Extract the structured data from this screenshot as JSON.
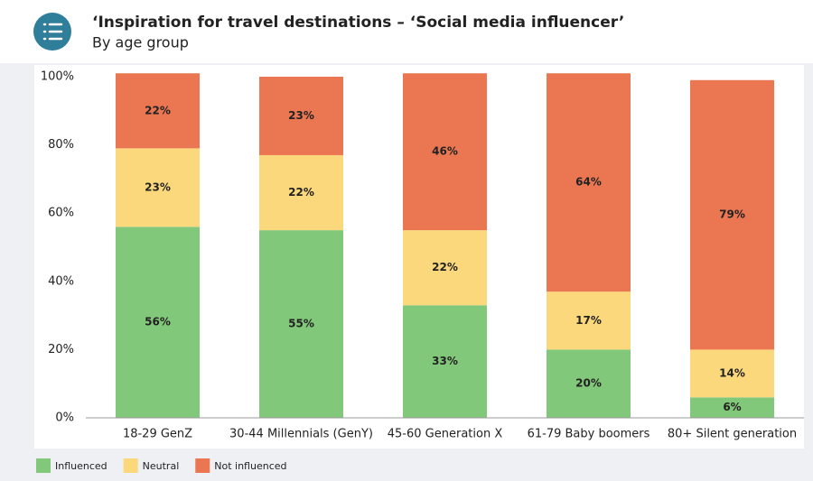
{
  "chart_data": {
    "type": "stacked_bar",
    "title": "‘Inspiration for travel destinations – ‘Social media influencer’",
    "subtitle": "By age group",
    "categories": [
      "18-29 GenZ",
      "30-44 Millennials (GenY)",
      "45-60 Generation X",
      "61-79 Baby boomers",
      "80+ Silent generation"
    ],
    "series": [
      {
        "name": "Influenced",
        "color": "#82c87a",
        "values": [
          56,
          55,
          33,
          20,
          6
        ],
        "value_labels": [
          "56%",
          "55%",
          "33%",
          "20%",
          "6%"
        ]
      },
      {
        "name": "Neutral",
        "color": "#fbd87b",
        "values": [
          23,
          22,
          22,
          17,
          14
        ],
        "value_labels": [
          "23%",
          "22%",
          "22%",
          "17%",
          "14%"
        ]
      },
      {
        "name": "Not influenced",
        "color": "#eb7752",
        "values": [
          22,
          23,
          46,
          64,
          79
        ],
        "value_labels": [
          "22%",
          "23%",
          "46%",
          "64%",
          "79%"
        ]
      }
    ],
    "ylim": [
      0,
      100
    ],
    "yticks": [
      {
        "value": 0,
        "label": "0%"
      },
      {
        "value": 20,
        "label": "20%"
      },
      {
        "value": 40,
        "label": "40%"
      },
      {
        "value": 60,
        "label": "60%"
      },
      {
        "value": 80,
        "label": "80%"
      },
      {
        "value": 100,
        "label": "100%"
      }
    ],
    "grid": false,
    "legend": "bottom-left"
  }
}
